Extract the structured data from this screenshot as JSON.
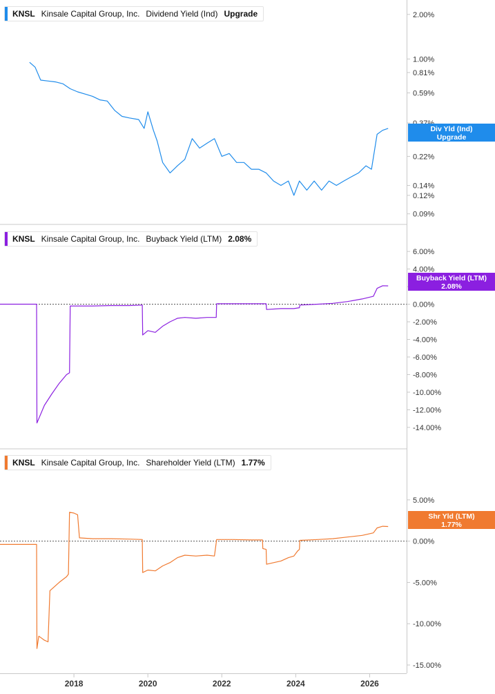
{
  "chart_data": [
    {
      "type": "line",
      "ticker": "KNSL",
      "company": "Kinsale Capital Group, Inc.",
      "metric": "Dividend Yield (Ind)",
      "current_value": "Upgrade",
      "flag_label": "Div Yld (Ind)",
      "flag_value": "Upgrade",
      "color": "#1f8ceb",
      "y_scale": "log",
      "ylim": [
        0.085,
        2.2
      ],
      "yticks": [
        "2.00%",
        "1.00%",
        "0.81%",
        "0.59%",
        "0.37%",
        "0.22%",
        "0.14%",
        "0.12%",
        "0.09%"
      ],
      "ytick_values": [
        2.0,
        1.0,
        0.81,
        0.59,
        0.37,
        0.22,
        0.14,
        0.12,
        0.09
      ],
      "series": [
        {
          "x": [
            2016.8,
            2016.95,
            2017.1,
            2017.3,
            2017.5,
            2017.7,
            2017.9,
            2018.1,
            2018.3,
            2018.5,
            2018.7,
            2018.9,
            2019.1,
            2019.3,
            2019.5,
            2019.75,
            2019.9,
            2020.0,
            2020.15,
            2020.25,
            2020.4,
            2020.6,
            2020.8,
            2021.0,
            2021.2,
            2021.4,
            2021.6,
            2021.8,
            2022.0,
            2022.2,
            2022.4,
            2022.6,
            2022.8,
            2023.0,
            2023.2,
            2023.4,
            2023.6,
            2023.8,
            2023.95,
            2024.1,
            2024.3,
            2024.5,
            2024.7,
            2024.9,
            2025.1,
            2025.3,
            2025.5,
            2025.7,
            2025.9,
            2026.05,
            2026.2,
            2026.35,
            2026.5
          ],
          "y": [
            0.95,
            0.88,
            0.72,
            0.71,
            0.7,
            0.68,
            0.63,
            0.6,
            0.58,
            0.56,
            0.53,
            0.52,
            0.45,
            0.41,
            0.4,
            0.39,
            0.34,
            0.44,
            0.33,
            0.28,
            0.2,
            0.17,
            0.19,
            0.21,
            0.29,
            0.25,
            0.27,
            0.29,
            0.22,
            0.23,
            0.2,
            0.2,
            0.18,
            0.18,
            0.17,
            0.15,
            0.14,
            0.15,
            0.12,
            0.15,
            0.13,
            0.15,
            0.13,
            0.15,
            0.14,
            0.15,
            0.16,
            0.17,
            0.19,
            0.18,
            0.31,
            0.33,
            0.34
          ]
        }
      ]
    },
    {
      "type": "line",
      "ticker": "KNSL",
      "company": "Kinsale Capital Group, Inc.",
      "metric": "Buyback Yield (LTM)",
      "current_value": "2.08%",
      "flag_label": "Buyback Yield (LTM)",
      "flag_value": "2.08%",
      "color": "#8b1fe0",
      "ylim": [
        -15.5,
        7.5
      ],
      "yticks": [
        "6.00%",
        "4.00%",
        "2.00%",
        "0.00%",
        "-2.00%",
        "-4.00%",
        "-6.00%",
        "-8.00%",
        "-10.00%",
        "-12.00%",
        "-14.00%"
      ],
      "ytick_values": [
        6,
        4,
        2,
        0,
        -2,
        -4,
        -6,
        -8,
        -10,
        -12,
        -14
      ],
      "zero_line": true,
      "series": [
        {
          "x": [
            2016.0,
            2016.99,
            2017.0,
            2017.05,
            2017.2,
            2017.4,
            2017.6,
            2017.8,
            2017.88,
            2017.9,
            2018.5,
            2019.0,
            2019.5,
            2019.85,
            2019.86,
            2020.0,
            2020.2,
            2020.4,
            2020.6,
            2020.8,
            2021.0,
            2021.3,
            2021.6,
            2021.85,
            2021.86,
            2022.3,
            2022.8,
            2023.2,
            2023.21,
            2023.6,
            2023.95,
            2024.1,
            2024.11,
            2024.6,
            2025.0,
            2025.4,
            2025.8,
            2026.1,
            2026.2,
            2026.35,
            2026.5
          ],
          "y": [
            0,
            0,
            -13.5,
            -13.0,
            -11.5,
            -10.2,
            -9.0,
            -8.0,
            -7.8,
            -0.2,
            -0.2,
            -0.15,
            -0.15,
            -0.1,
            -3.5,
            -3.0,
            -3.2,
            -2.5,
            -2.0,
            -1.6,
            -1.5,
            -1.6,
            -1.5,
            -1.5,
            0.05,
            0.05,
            0.05,
            0.05,
            -0.6,
            -0.5,
            -0.5,
            -0.4,
            -0.1,
            0.0,
            0.1,
            0.3,
            0.6,
            0.9,
            1.8,
            2.1,
            2.08
          ]
        }
      ]
    },
    {
      "type": "line",
      "ticker": "KNSL",
      "company": "Kinsale Capital Group, Inc.",
      "metric": "Shareholder Yield (LTM)",
      "current_value": "1.77%",
      "flag_label": "Shr Yld (LTM)",
      "flag_value": "1.77%",
      "color": "#f07a30",
      "ylim": [
        -15.5,
        8.0
      ],
      "yticks": [
        "5.00%",
        "0.00%",
        "-5.00%",
        "-10.00%",
        "-15.00%"
      ],
      "ytick_values": [
        5,
        0,
        -5,
        -10,
        -15
      ],
      "zero_line": true,
      "series": [
        {
          "x": [
            2016.0,
            2016.99,
            2017.0,
            2017.05,
            2017.2,
            2017.3,
            2017.35,
            2017.6,
            2017.8,
            2017.85,
            2017.88,
            2018.0,
            2018.1,
            2018.15,
            2018.5,
            2019.0,
            2019.5,
            2019.85,
            2019.86,
            2020.0,
            2020.2,
            2020.4,
            2020.6,
            2020.8,
            2021.0,
            2021.3,
            2021.6,
            2021.8,
            2021.86,
            2022.3,
            2022.8,
            2023.1,
            2023.11,
            2023.2,
            2023.21,
            2023.6,
            2023.8,
            2023.95,
            2024.05,
            2024.1,
            2024.11,
            2024.6,
            2025.0,
            2025.4,
            2025.8,
            2026.1,
            2026.2,
            2026.35,
            2026.5
          ],
          "y": [
            -0.4,
            -0.4,
            -13.0,
            -11.5,
            -12.0,
            -12.2,
            -6.0,
            -5.0,
            -4.3,
            -4.0,
            3.5,
            3.4,
            3.2,
            0.4,
            0.3,
            0.3,
            0.25,
            0.2,
            -3.8,
            -3.5,
            -3.6,
            -3.0,
            -2.6,
            -2.0,
            -1.7,
            -1.8,
            -1.7,
            -1.8,
            0.2,
            0.2,
            0.15,
            0.15,
            -0.9,
            -1.0,
            -2.8,
            -2.4,
            -2.0,
            -1.8,
            -1.2,
            -1.0,
            0.1,
            0.2,
            0.3,
            0.5,
            0.7,
            1.0,
            1.6,
            1.8,
            1.77
          ]
        }
      ]
    }
  ],
  "x_axis": {
    "xlim": [
      2016.0,
      2027.0
    ],
    "ticks": [
      "2018",
      "2020",
      "2022",
      "2024",
      "2026"
    ],
    "tick_values": [
      2018,
      2020,
      2022,
      2024,
      2026
    ]
  }
}
